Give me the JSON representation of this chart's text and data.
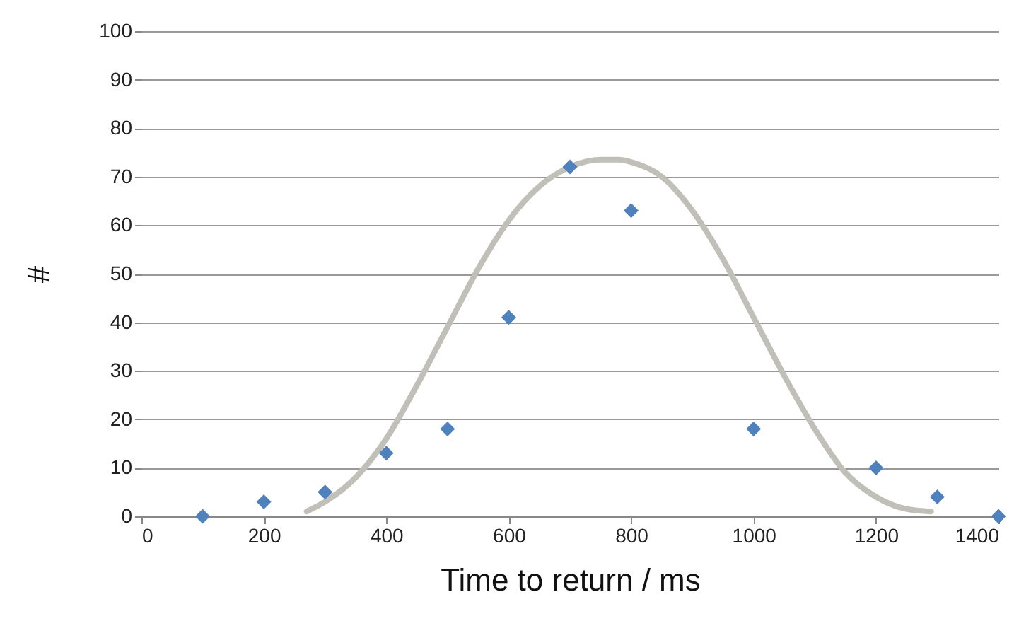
{
  "chart_data": {
    "type": "scatter",
    "xlabel": "Time to return / ms",
    "ylabel": "#",
    "xlim": [
      0,
      1400
    ],
    "xticks": [
      0,
      200,
      400,
      600,
      800,
      1000,
      1200,
      1400
    ],
    "ylim": [
      0,
      100
    ],
    "yticks": [
      0,
      10,
      20,
      30,
      40,
      50,
      60,
      70,
      80,
      90,
      100
    ],
    "grid": "y",
    "series": [
      {
        "marker": "diamond",
        "color": "#4f81bd",
        "x": [
          100,
          200,
          300,
          400,
          500,
          600,
          700,
          800,
          1000,
          1200,
          1300,
          1400
        ],
        "values": [
          0,
          3,
          5,
          13,
          18,
          41,
          72,
          63,
          18,
          10,
          4,
          0
        ]
      },
      {
        "type": "line",
        "color": "#c0c0b8",
        "line_style": "solid",
        "x": [
          270,
          300,
          350,
          400,
          450,
          500,
          550,
          600,
          650,
          700,
          750,
          780,
          800,
          850,
          900,
          950,
          1000,
          1050,
          1100,
          1150,
          1200,
          1250,
          1290
        ],
        "values": [
          1,
          3,
          8,
          16,
          27,
          39,
          51,
          61,
          68,
          72,
          73.5,
          73.5,
          73,
          70,
          63,
          53,
          41,
          29,
          18,
          9,
          4,
          1.5,
          1
        ]
      }
    ]
  }
}
